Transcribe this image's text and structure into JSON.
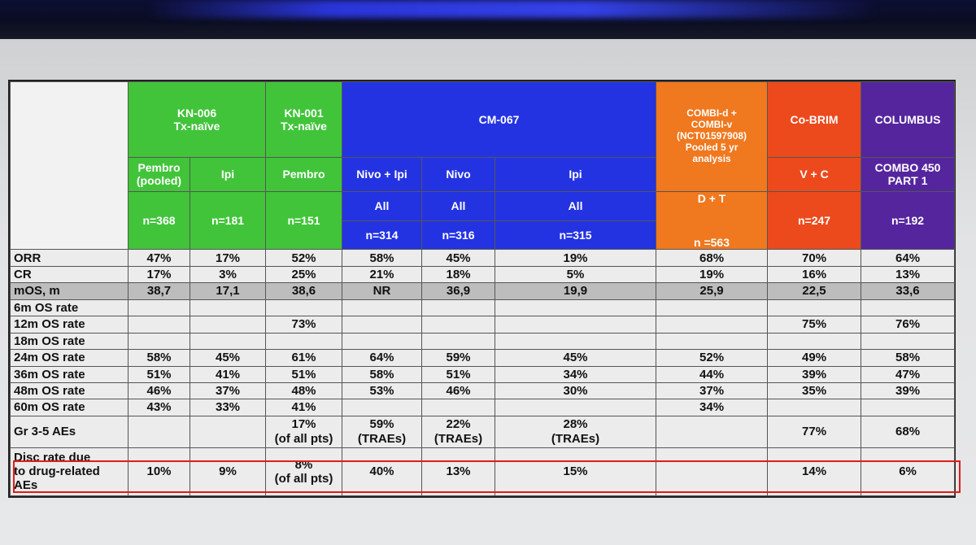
{
  "header": {
    "kn006": "KN-006\nTx-naïve",
    "kn001": "KN-001\nTx-naïve",
    "cm067": "CM-067",
    "combi": "COMBI-d +\nCOMBI-v\n(NCT01597908)\nPooled 5 yr\nanalysis",
    "cobrim": "Co-BRIM",
    "columbus": "COLUMBUS"
  },
  "arms": {
    "pembro_pooled": "Pembro\n(pooled)",
    "ipi_kn006": "Ipi",
    "pembro_kn001": "Pembro",
    "nivo_ipi": "Nivo + Ipi",
    "nivo": "Nivo",
    "ipi_cm067": "Ipi",
    "d_t": "D + T",
    "v_c": "V + C",
    "combo450": "COMBO 450\nPART 1"
  },
  "population": {
    "nivo_ipi": "All",
    "nivo": "All",
    "ipi": "All"
  },
  "n": {
    "pembro_pooled": "n=368",
    "ipi_kn006": "n=181",
    "pembro_kn001": "n=151",
    "nivo_ipi": "n=314",
    "nivo": "n=316",
    "ipi_cm067": "n=315",
    "d_t": "n =563",
    "v_c": "n=247",
    "combo450": "n=192"
  },
  "rows": [
    {
      "label": "ORR",
      "values": [
        "47%",
        "17%",
        "52%",
        "58%",
        "45%",
        "19%",
        "68%",
        "70%",
        "64%"
      ]
    },
    {
      "label": "CR",
      "values": [
        "17%",
        "3%",
        "25%",
        "21%",
        "18%",
        "5%",
        "19%",
        "16%",
        "13%"
      ]
    },
    {
      "label": "mOS, m",
      "values": [
        "38,7",
        "17,1",
        "38,6",
        "NR",
        "36,9",
        "19,9",
        "25,9",
        "22,5",
        "33,6"
      ]
    },
    {
      "label": "6m OS rate",
      "values": [
        "",
        "",
        "",
        "",
        "",
        "",
        "",
        "",
        ""
      ]
    },
    {
      "label": "12m OS rate",
      "values": [
        "",
        "",
        "73%",
        "",
        "",
        "",
        "",
        "75%",
        "76%"
      ]
    },
    {
      "label": "18m OS rate",
      "values": [
        "",
        "",
        "",
        "",
        "",
        "",
        "",
        "",
        ""
      ]
    },
    {
      "label": "24m OS rate",
      "values": [
        "58%",
        "45%",
        "61%",
        "64%",
        "59%",
        "45%",
        "52%",
        "49%",
        "58%"
      ]
    },
    {
      "label": "36m OS rate",
      "values": [
        "51%",
        "41%",
        "51%",
        "58%",
        "51%",
        "34%",
        "44%",
        "39%",
        "47%"
      ]
    },
    {
      "label": "48m OS rate",
      "values": [
        "46%",
        "37%",
        "48%",
        "53%",
        "46%",
        "30%",
        "37%",
        "35%",
        "39%"
      ]
    },
    {
      "label": "60m OS rate",
      "values": [
        "43%",
        "33%",
        "41%",
        "",
        "",
        "",
        "34%",
        "",
        ""
      ]
    },
    {
      "label": "Gr 3-5 AEs",
      "values": [
        "",
        "",
        "17%\n(of all pts)",
        "59%\n(TRAEs)",
        "22%\n(TRAEs)",
        "28%\n(TRAEs)",
        "",
        "77%",
        "68%"
      ]
    },
    {
      "label": "Disc rate due\nto drug-related\nAEs",
      "values": [
        "10%",
        "9%",
        "8%\n(of all pts)",
        "40%",
        "13%",
        "15%",
        "",
        "14%",
        "6%"
      ]
    }
  ],
  "colors": {
    "green": "#41c43a",
    "blue": "#2433e2",
    "orange": "#f0781e",
    "red": "#ec4a1c",
    "purple": "#55259e",
    "highlight": "#e21b1b"
  }
}
